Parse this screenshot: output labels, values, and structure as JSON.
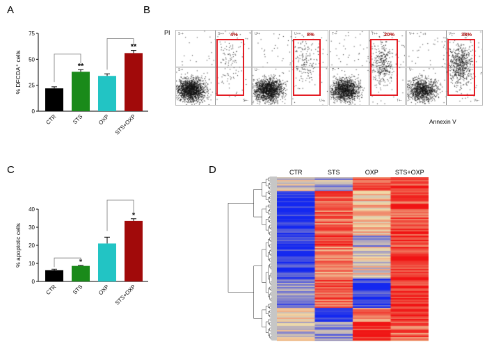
{
  "figure": {
    "panel_labels": {
      "A": "A",
      "B": "B",
      "C": "C",
      "D": "D"
    },
    "flow_axis": {
      "y_label": "PI",
      "x_label": "Annexin V"
    },
    "flow_plots": [
      {
        "id": "S",
        "percent": "4%",
        "q_ul": "S-+",
        "q_ur": "S++",
        "q_ll": "S--",
        "q_lr": "S+-"
      },
      {
        "id": "U",
        "percent": "8%",
        "q_ul": "U-+",
        "q_ur": "U++",
        "q_ll": "U--",
        "q_lr": "U+-"
      },
      {
        "id": "T",
        "percent": "20%",
        "q_ul": "T-+",
        "q_ur": "T++",
        "q_ll": "T--",
        "q_lr": "T+-"
      },
      {
        "id": "V",
        "percent": "38%",
        "q_ul": "V-+",
        "q_ur": "V++",
        "q_ll": "V--",
        "q_lr": "V+-"
      }
    ],
    "heatmap": {
      "columns": [
        "CTR",
        "STS",
        "OXP",
        "STS+OXP"
      ]
    },
    "colors": {
      "ctr": "#000000",
      "sts": "#1a8a1a",
      "oxp": "#22c4c4",
      "stsoxp": "#a10a0a",
      "gate": "#e31b23"
    }
  },
  "chart_data": [
    {
      "type": "bar",
      "panel": "A",
      "categories": [
        "CTR",
        "STS",
        "OXP",
        "STS+OXP"
      ],
      "values": [
        22,
        38,
        34,
        56
      ],
      "errors": [
        1.5,
        2,
        2,
        2.5
      ],
      "ylabel": "% DFCDA⁺ cells",
      "ylim": [
        0,
        75
      ],
      "yticks": [
        "0",
        "25",
        "50",
        "75"
      ],
      "significance": [
        "",
        "**",
        "",
        "**"
      ]
    },
    {
      "type": "bar",
      "panel": "C",
      "categories": [
        "CTR",
        "STS",
        "OXP",
        "STS+OXP"
      ],
      "values": [
        6.2,
        8.6,
        21,
        33.5
      ],
      "errors": [
        0.6,
        0.3,
        3.5,
        1.2
      ],
      "ylabel": "% apoptotic cells",
      "ylim": [
        0,
        40
      ],
      "yticks": [
        "0",
        "10",
        "20",
        "30",
        "40"
      ],
      "significance": [
        "",
        "*",
        "",
        "*"
      ]
    }
  ]
}
